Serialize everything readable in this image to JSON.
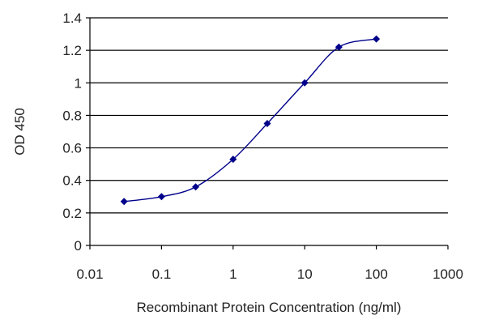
{
  "chart_data": {
    "type": "line",
    "title": "",
    "xlabel": "Recombinant Protein Concentration (ng/ml)",
    "ylabel": "OD 450",
    "x_scale": "log",
    "xlim": [
      0.01,
      1000
    ],
    "ylim": [
      0,
      1.4
    ],
    "x_ticks": [
      0.01,
      0.1,
      1,
      10,
      100,
      1000
    ],
    "x_tick_labels": [
      "0.01",
      "0.1",
      "1",
      "10",
      "100",
      "1000"
    ],
    "y_ticks": [
      0,
      0.2,
      0.4,
      0.6,
      0.8,
      1,
      1.2,
      1.4
    ],
    "y_tick_labels": [
      "0",
      "0.2",
      "0.4",
      "0.6",
      "0.8",
      "1",
      "1.2",
      "1.4"
    ],
    "grid": "horizontal",
    "legend": "none",
    "series": [
      {
        "color": "#00008B",
        "x": [
          0.03,
          0.1,
          0.3,
          1,
          3,
          10,
          30,
          100
        ],
        "y": [
          0.27,
          0.3,
          0.36,
          0.53,
          0.75,
          1.0,
          1.22,
          1.27
        ]
      }
    ]
  }
}
